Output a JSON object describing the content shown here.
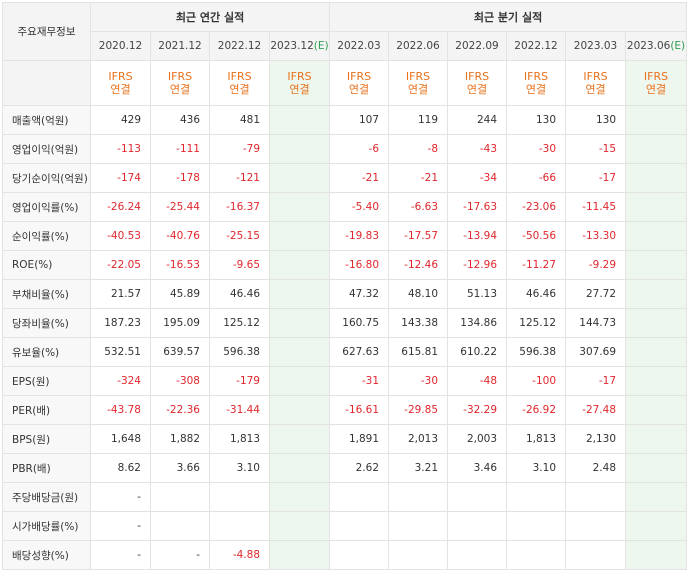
{
  "header": {
    "label": "주요재무정보",
    "annual_title": "최근 연간 실적",
    "quarter_title": "최근 분기 실적"
  },
  "annual_periods": [
    {
      "date": "2020.12",
      "est": ""
    },
    {
      "date": "2021.12",
      "est": ""
    },
    {
      "date": "2022.12",
      "est": ""
    },
    {
      "date": "2023.12",
      "est": "(E)"
    }
  ],
  "quarter_periods": [
    {
      "date": "2022.03",
      "est": ""
    },
    {
      "date": "2022.06",
      "est": ""
    },
    {
      "date": "2022.09",
      "est": ""
    },
    {
      "date": "2022.12",
      "est": ""
    },
    {
      "date": "2023.03",
      "est": ""
    },
    {
      "date": "2023.06",
      "est": "(E)"
    }
  ],
  "ifrs": {
    "line1": "IFRS",
    "line2": "연결"
  },
  "rows": [
    {
      "label": "매출액(억원)",
      "values": [
        "429",
        "436",
        "481",
        "",
        "107",
        "119",
        "244",
        "130",
        "130",
        ""
      ]
    },
    {
      "label": "영업이익(억원)",
      "values": [
        "-113",
        "-111",
        "-79",
        "",
        "-6",
        "-8",
        "-43",
        "-30",
        "-15",
        ""
      ]
    },
    {
      "label": "당기순이익(억원)",
      "values": [
        "-174",
        "-178",
        "-121",
        "",
        "-21",
        "-21",
        "-34",
        "-66",
        "-17",
        ""
      ]
    },
    {
      "label": "영업이익률(%)",
      "values": [
        "-26.24",
        "-25.44",
        "-16.37",
        "",
        "-5.40",
        "-6.63",
        "-17.63",
        "-23.06",
        "-11.45",
        ""
      ]
    },
    {
      "label": "순이익률(%)",
      "values": [
        "-40.53",
        "-40.76",
        "-25.15",
        "",
        "-19.83",
        "-17.57",
        "-13.94",
        "-50.56",
        "-13.30",
        ""
      ]
    },
    {
      "label": "ROE(%)",
      "values": [
        "-22.05",
        "-16.53",
        "-9.65",
        "",
        "-16.80",
        "-12.46",
        "-12.96",
        "-11.27",
        "-9.29",
        ""
      ]
    },
    {
      "label": "부채비율(%)",
      "values": [
        "21.57",
        "45.89",
        "46.46",
        "",
        "47.32",
        "48.10",
        "51.13",
        "46.46",
        "27.72",
        ""
      ]
    },
    {
      "label": "당좌비율(%)",
      "values": [
        "187.23",
        "195.09",
        "125.12",
        "",
        "160.75",
        "143.38",
        "134.86",
        "125.12",
        "144.73",
        ""
      ]
    },
    {
      "label": "유보율(%)",
      "values": [
        "532.51",
        "639.57",
        "596.38",
        "",
        "627.63",
        "615.81",
        "610.22",
        "596.38",
        "307.69",
        ""
      ]
    },
    {
      "label": "EPS(원)",
      "values": [
        "-324",
        "-308",
        "-179",
        "",
        "-31",
        "-30",
        "-48",
        "-100",
        "-17",
        ""
      ]
    },
    {
      "label": "PER(배)",
      "values": [
        "-43.78",
        "-22.36",
        "-31.44",
        "",
        "-16.61",
        "-29.85",
        "-32.29",
        "-26.92",
        "-27.48",
        ""
      ]
    },
    {
      "label": "BPS(원)",
      "values": [
        "1,648",
        "1,882",
        "1,813",
        "",
        "1,891",
        "2,013",
        "2,003",
        "1,813",
        "2,130",
        ""
      ]
    },
    {
      "label": "PBR(배)",
      "values": [
        "8.62",
        "3.66",
        "3.10",
        "",
        "2.62",
        "3.21",
        "3.46",
        "3.10",
        "2.48",
        ""
      ]
    },
    {
      "label": "주당배당금(원)",
      "values": [
        "-",
        "",
        "",
        "",
        "",
        "",
        "",
        "",
        "",
        ""
      ]
    },
    {
      "label": "시가배당률(%)",
      "values": [
        "-",
        "",
        "",
        "",
        "",
        "",
        "",
        "",
        "",
        ""
      ]
    },
    {
      "label": "배당성향(%)",
      "values": [
        "-",
        "-",
        "-4.88",
        "",
        "",
        "",
        "",
        "",
        "",
        ""
      ]
    }
  ]
}
